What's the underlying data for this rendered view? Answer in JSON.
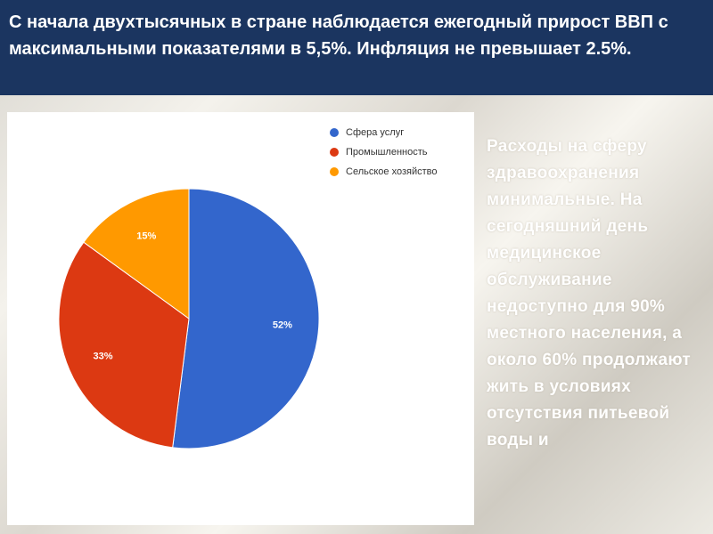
{
  "header": {
    "text": "С начала двухтысячных в стране наблюдается ежегодный прирост ВВП с максимальными показателями в 5,5%. Инфляция не превышает 2.5%."
  },
  "side_text": "Расходы на сферу здравоохранения минимальные. На сегодняшний день медицинское обслуживание недоступно для 90% местного населения, а около 60% продолжают жить в условиях отсутствия питьевой воды и",
  "chart_data": {
    "type": "pie",
    "categories": [
      "Сфера услуг",
      "Промышленность",
      "Сельское хозяйство"
    ],
    "values": [
      52,
      33,
      15
    ],
    "labels": [
      "52%",
      "33%",
      "15%"
    ],
    "colors": [
      "#3366cc",
      "#dc3912",
      "#ff9900"
    ],
    "legend": "top-right"
  }
}
